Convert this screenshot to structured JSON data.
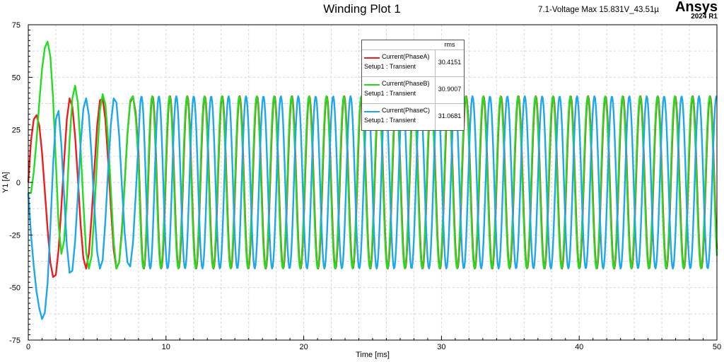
{
  "header": {
    "title": "Winding Plot 1",
    "subtitle": "7.1-Voltage  Max 15.831V_43.51µ",
    "brand": "Ansys",
    "version": "2024 R1"
  },
  "legend": {
    "column_header": "rms",
    "entries": [
      {
        "name": "Current(PhaseA)",
        "setup": "Setup1 : Transient",
        "rms": "30.4151",
        "color": "#ee1c1c"
      },
      {
        "name": "Current(PhaseB)",
        "setup": "Setup1 : Transient",
        "rms": "30.9007",
        "color": "#22dd22"
      },
      {
        "name": "Current(PhaseC)",
        "setup": "Setup1 : Transient",
        "rms": "31.0681",
        "color": "#1ea8ec"
      }
    ]
  },
  "chart_data": {
    "type": "line",
    "title": "Winding Plot 1",
    "xlabel": "Time [ms]",
    "ylabel": "Y1 [A]",
    "xlim": [
      0,
      50
    ],
    "ylim": [
      -75,
      75
    ],
    "x_ticks": [
      "0",
      "10",
      "20",
      "30",
      "40",
      "50"
    ],
    "y_ticks": [
      "75",
      "50",
      "25",
      "0",
      "-25",
      "-50",
      "-75"
    ],
    "grid": true,
    "legend_position": "top-center",
    "x": [
      0,
      0.2,
      0.4,
      0.6,
      0.8,
      1.0,
      1.2,
      1.4,
      1.6,
      1.8,
      2.0,
      2.2,
      2.4,
      2.6,
      2.8,
      3.0,
      3.2,
      3.4,
      3.6,
      3.8,
      4.0,
      4.2,
      4.4,
      4.6,
      4.8,
      5.0,
      5.2,
      5.4,
      5.6,
      5.8,
      6.0,
      6.2,
      6.4,
      6.6,
      6.8,
      7.0,
      7.2,
      7.4,
      7.6,
      7.8,
      8.0
    ],
    "series": [
      {
        "name": "Current(PhaseA)",
        "color": "#ee1c1c",
        "values": [
          0,
          20,
          30,
          32,
          27,
          14,
          -4,
          -22,
          -38,
          -45,
          -44,
          -32,
          -12,
          10,
          30,
          40,
          36,
          22,
          2,
          -20,
          -36,
          -41,
          -34,
          -16,
          6,
          27,
          39,
          40,
          30,
          10,
          -12,
          -32,
          -41,
          -38,
          -22,
          0,
          23,
          38,
          41,
          33,
          15
        ]
      },
      {
        "name": "Current(PhaseB)",
        "color": "#22dd22",
        "values": [
          -5,
          -5,
          5,
          20,
          38,
          54,
          64,
          67,
          60,
          40,
          10,
          -20,
          -34,
          -28,
          -8,
          20,
          40,
          46,
          38,
          16,
          -10,
          -33,
          -41,
          -35,
          -14,
          12,
          34,
          42,
          37,
          20,
          -4,
          -28,
          -41,
          -38,
          -24,
          -1,
          23,
          39,
          41,
          31,
          10
        ]
      },
      {
        "name": "Current(PhaseC)",
        "color": "#1ea8ec",
        "values": [
          -5,
          -25,
          -40,
          -52,
          -60,
          -65,
          -62,
          -48,
          -22,
          8,
          30,
          34,
          18,
          -6,
          -30,
          -43,
          -42,
          -28,
          -6,
          18,
          35,
          40,
          32,
          12,
          -12,
          -33,
          -41,
          -37,
          -18,
          6,
          28,
          40,
          38,
          22,
          -2,
          -24,
          -38,
          -40,
          -29,
          -6,
          19
        ]
      }
    ],
    "steady_state": {
      "period_ms": 1.265,
      "amplitude_A": 41,
      "phase_order": [
        "Current(PhaseA)",
        "Current(PhaseB)",
        "Current(PhaseC)"
      ],
      "phase_shift_deg": 120
    }
  }
}
